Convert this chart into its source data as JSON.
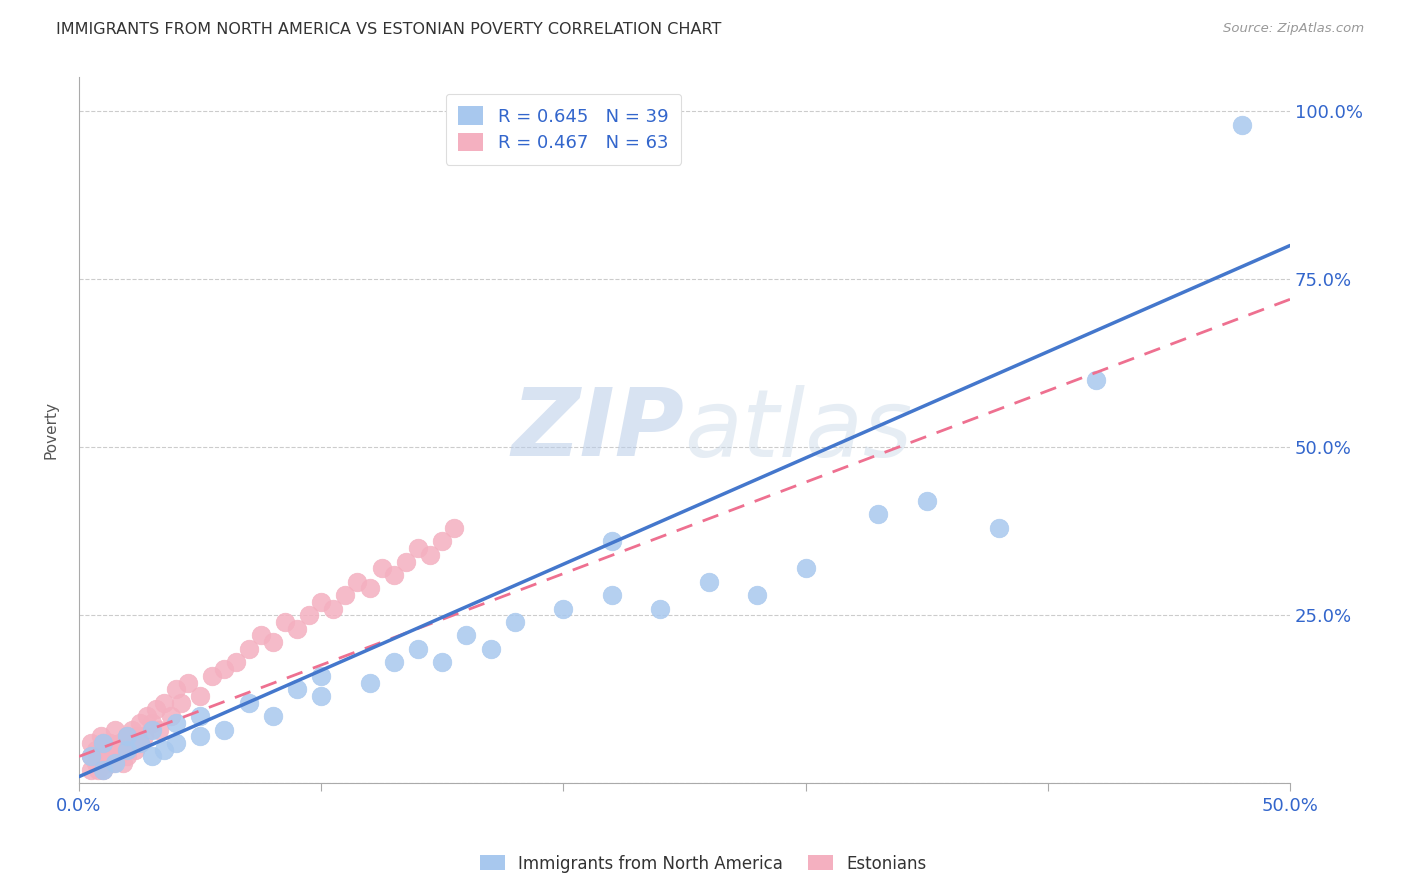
{
  "title": "IMMIGRANTS FROM NORTH AMERICA VS ESTONIAN POVERTY CORRELATION CHART",
  "source": "Source: ZipAtlas.com",
  "ylabel": "Poverty",
  "xlim": [
    0.0,
    0.5
  ],
  "ylim": [
    0.0,
    1.05
  ],
  "xticks": [
    0.0,
    0.1,
    0.2,
    0.3,
    0.4,
    0.5
  ],
  "xtick_labels": [
    "0.0%",
    "",
    "",
    "",
    "",
    "50.0%"
  ],
  "yticks": [
    0.0,
    0.25,
    0.5,
    0.75,
    1.0
  ],
  "ytick_labels": [
    "",
    "25.0%",
    "50.0%",
    "75.0%",
    "100.0%"
  ],
  "blue_R": 0.645,
  "blue_N": 39,
  "pink_R": 0.467,
  "pink_N": 63,
  "blue_color": "#A8C8EE",
  "pink_color": "#F4B0C0",
  "blue_line_color": "#4477CC",
  "pink_line_color": "#EE7090",
  "watermark_zip": "ZIP",
  "watermark_atlas": "atlas",
  "legend_label_blue": "Immigrants from North America",
  "legend_label_pink": "Estonians",
  "blue_scatter_x": [
    0.005,
    0.01,
    0.01,
    0.015,
    0.02,
    0.02,
    0.025,
    0.03,
    0.03,
    0.035,
    0.04,
    0.04,
    0.05,
    0.05,
    0.06,
    0.07,
    0.08,
    0.09,
    0.1,
    0.1,
    0.12,
    0.13,
    0.14,
    0.15,
    0.16,
    0.17,
    0.18,
    0.2,
    0.22,
    0.22,
    0.24,
    0.26,
    0.28,
    0.3,
    0.33,
    0.35,
    0.38,
    0.42,
    0.48
  ],
  "blue_scatter_y": [
    0.04,
    0.02,
    0.06,
    0.03,
    0.05,
    0.07,
    0.06,
    0.04,
    0.08,
    0.05,
    0.06,
    0.09,
    0.07,
    0.1,
    0.08,
    0.12,
    0.1,
    0.14,
    0.13,
    0.16,
    0.15,
    0.18,
    0.2,
    0.18,
    0.22,
    0.2,
    0.24,
    0.26,
    0.28,
    0.36,
    0.26,
    0.3,
    0.28,
    0.32,
    0.4,
    0.42,
    0.38,
    0.6,
    0.98
  ],
  "pink_scatter_x": [
    0.005,
    0.005,
    0.005,
    0.007,
    0.007,
    0.008,
    0.008,
    0.009,
    0.009,
    0.01,
    0.01,
    0.01,
    0.012,
    0.012,
    0.013,
    0.013,
    0.014,
    0.015,
    0.015,
    0.016,
    0.017,
    0.018,
    0.019,
    0.02,
    0.02,
    0.021,
    0.022,
    0.023,
    0.024,
    0.025,
    0.025,
    0.027,
    0.028,
    0.03,
    0.032,
    0.033,
    0.035,
    0.038,
    0.04,
    0.042,
    0.045,
    0.05,
    0.055,
    0.06,
    0.065,
    0.07,
    0.075,
    0.08,
    0.085,
    0.09,
    0.095,
    0.1,
    0.105,
    0.11,
    0.115,
    0.12,
    0.125,
    0.13,
    0.135,
    0.14,
    0.145,
    0.15,
    0.155
  ],
  "pink_scatter_y": [
    0.02,
    0.04,
    0.06,
    0.03,
    0.05,
    0.02,
    0.04,
    0.03,
    0.07,
    0.02,
    0.04,
    0.06,
    0.03,
    0.05,
    0.04,
    0.06,
    0.03,
    0.05,
    0.08,
    0.04,
    0.06,
    0.03,
    0.05,
    0.07,
    0.04,
    0.06,
    0.08,
    0.05,
    0.07,
    0.06,
    0.09,
    0.07,
    0.1,
    0.09,
    0.11,
    0.08,
    0.12,
    0.1,
    0.14,
    0.12,
    0.15,
    0.13,
    0.16,
    0.17,
    0.18,
    0.2,
    0.22,
    0.21,
    0.24,
    0.23,
    0.25,
    0.27,
    0.26,
    0.28,
    0.3,
    0.29,
    0.32,
    0.31,
    0.33,
    0.35,
    0.34,
    0.36,
    0.38
  ],
  "blue_line_x0": 0.0,
  "blue_line_y0": 0.01,
  "blue_line_x1": 0.5,
  "blue_line_y1": 0.8,
  "pink_line_x0": 0.0,
  "pink_line_y0": 0.04,
  "pink_line_x1": 0.5,
  "pink_line_y1": 0.72
}
